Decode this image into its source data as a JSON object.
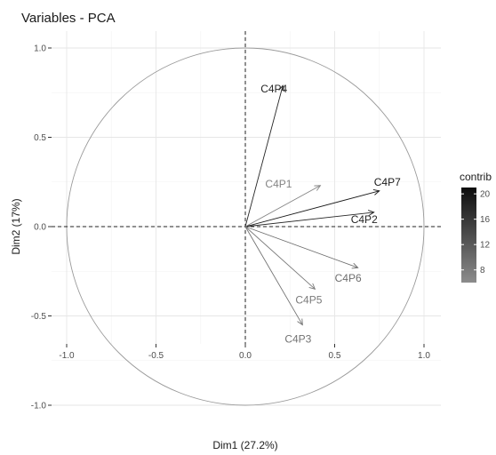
{
  "chart_data": {
    "type": "scatter",
    "subtype": "pca-correlation-circle",
    "title": "Variables - PCA",
    "xlabel": "Dim1 (27.2%)",
    "ylabel": "Dim2 (17%)",
    "xlim": [
      -1.0,
      1.0
    ],
    "ylim": [
      -1.0,
      1.0
    ],
    "x_ticks": [
      -1.0,
      -0.5,
      0.0,
      0.5,
      1.0
    ],
    "x_tick_labels": [
      "-1.0",
      "-0.5",
      "0.0",
      "0.5",
      "1.0"
    ],
    "y_ticks": [
      -1.0,
      -0.5,
      0.0,
      0.5,
      1.0
    ],
    "y_tick_labels": [
      "-1.0",
      "-0.5",
      "0.0",
      "0.5",
      "1.0"
    ],
    "grid": true,
    "unit_circle": true,
    "reference_lines": [
      0,
      0
    ],
    "legend": {
      "title": "contrib",
      "placement": "right",
      "range": [
        6,
        21
      ],
      "ticks": [
        8,
        12,
        16,
        20
      ],
      "tick_labels": [
        "8",
        "12",
        "16",
        "20"
      ],
      "color_low": "#8c8c8c",
      "color_high": "#0d0d0d"
    },
    "variables": [
      {
        "label": "C4P4",
        "x": 0.21,
        "y": 0.79,
        "contrib": 18
      },
      {
        "label": "C4P7",
        "x": 0.75,
        "y": 0.2,
        "contrib": 19.5
      },
      {
        "label": "C4P2",
        "x": 0.72,
        "y": 0.08,
        "contrib": 18
      },
      {
        "label": "C4P1",
        "x": 0.42,
        "y": 0.23,
        "contrib": 7
      },
      {
        "label": "C4P6",
        "x": 0.63,
        "y": -0.23,
        "contrib": 9.5
      },
      {
        "label": "C4P5",
        "x": 0.39,
        "y": -0.35,
        "contrib": 8
      },
      {
        "label": "C4P3",
        "x": 0.32,
        "y": -0.55,
        "contrib": 9
      }
    ]
  }
}
